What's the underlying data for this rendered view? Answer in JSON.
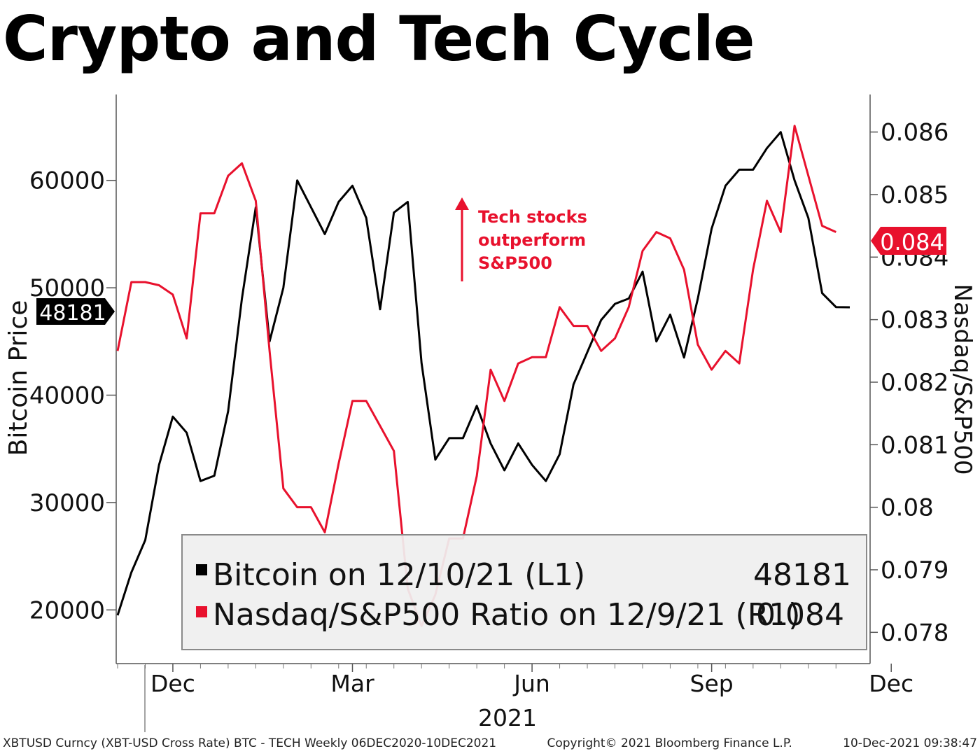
{
  "chart_data": {
    "type": "line",
    "title": "Crypto and Tech Cycle",
    "year_label": "2021",
    "left_axis": {
      "label": "Bitcoin Price",
      "ticks": [
        20000,
        30000,
        40000,
        50000,
        60000
      ],
      "range": [
        15000,
        68000
      ]
    },
    "right_axis": {
      "label": "Nasdaq/S&P500",
      "ticks": [
        0.078,
        0.079,
        0.08,
        0.081,
        0.082,
        0.083,
        0.084,
        0.085,
        0.086
      ],
      "tick_labels": [
        "0.078",
        "0.079",
        "0.08",
        "0.081",
        "0.082",
        "0.083",
        "0.084",
        "0.085",
        "0.086"
      ],
      "range": [
        0.0775,
        0.0866
      ]
    },
    "x_axis": {
      "month_labels": [
        "Dec",
        "Mar",
        "Jun",
        "Sep",
        "Dec"
      ],
      "month_positions": [
        4,
        17,
        30,
        43,
        56
      ]
    },
    "series": [
      {
        "name": "Bitcoin",
        "color": "#000000",
        "axis": "left",
        "end_marker": "48181",
        "values": [
          19500,
          23500,
          26500,
          33500,
          38000,
          36500,
          32000,
          32500,
          38500,
          49000,
          57500,
          45000,
          50000,
          60000,
          57500,
          55000,
          58000,
          59500,
          56500,
          48000,
          57000,
          58000,
          43000,
          34000,
          36000,
          36000,
          39000,
          35500,
          33000,
          35500,
          33500,
          32000,
          34500,
          41000,
          44000,
          47000,
          48500,
          49000,
          51500,
          45000,
          47500,
          43500,
          49000,
          55500,
          59500,
          61000,
          61000,
          63000,
          64500,
          60000,
          56500,
          49500,
          48200,
          48181
        ]
      },
      {
        "name": "Nasdaq/S&P500 Ratio",
        "color": "#e8112d",
        "axis": "right",
        "end_marker": "0.084",
        "values": [
          0.0825,
          0.0836,
          0.0836,
          0.08355,
          0.0834,
          0.0827,
          0.0847,
          0.0847,
          0.0853,
          0.0855,
          0.0849,
          0.0825,
          0.0803,
          0.08,
          0.08,
          0.0796,
          0.0807,
          0.0817,
          0.0817,
          0.0813,
          0.0809,
          0.0787,
          0.0781,
          0.0786,
          0.0795,
          0.0795,
          0.0805,
          0.0822,
          0.0817,
          0.0823,
          0.0824,
          0.0824,
          0.0832,
          0.0829,
          0.0829,
          0.0825,
          0.0827,
          0.0832,
          0.0841,
          0.0844,
          0.0843,
          0.0838,
          0.0826,
          0.0822,
          0.0825,
          0.0823,
          0.0838,
          0.0849,
          0.0844,
          0.0861,
          0.0853,
          0.0845,
          0.0844
        ]
      }
    ],
    "annotation": {
      "lines": [
        "Tech stocks",
        "outperform",
        "S&P500"
      ],
      "color": "#e8112d"
    },
    "legend": {
      "placement": "bottom-center",
      "entries": [
        {
          "label": "Bitcoin on 12/10/21 (L1)",
          "value": "48181",
          "color": "#000000"
        },
        {
          "label": "Nasdaq/S&P500 Ratio on 12/9/21 (R1)",
          "value": "0.084",
          "color": "#e8112d"
        }
      ]
    },
    "grid": false
  },
  "footer": {
    "source": "XBTUSD Curncy (XBT-USD Cross Rate) BTC - TECH  Weekly 06DEC2020-10DEC2021",
    "copyright": "Copyright© 2021 Bloomberg Finance L.P.",
    "timestamp": "10-Dec-2021 09:38:47"
  }
}
